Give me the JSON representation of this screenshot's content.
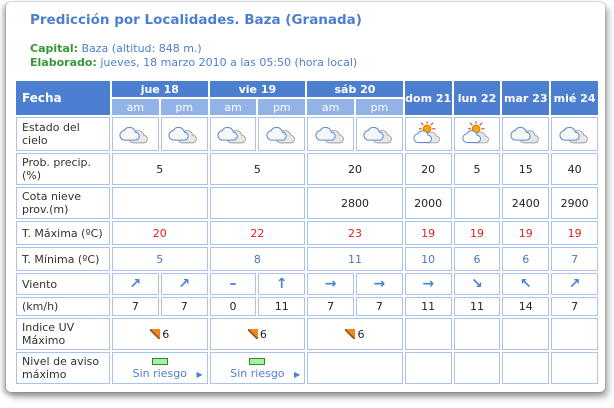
{
  "header": {
    "title": "Predicción por Localidades. Baza (Granada)",
    "capital": {
      "label": "Capital:",
      "value": "Baza (altitud: 848 m.)"
    },
    "elaborado": {
      "label": "Elaborado:",
      "value": "jueves, 18 marzo 2010 a las 05:50 (hora local)"
    }
  },
  "colors": {
    "accent_blue": "#4c7fd0",
    "light_blue": "#92b2e8",
    "cell_border": "#a9c3e9",
    "temp_max_red": "#dd2222",
    "temp_min_blue": "#4879bb",
    "label_green": "#339933",
    "risk_green": "#a8f0a0"
  },
  "table": {
    "fecha": "Fecha",
    "day_groups": [
      "jue 18",
      "vie 19",
      "sáb 20"
    ],
    "subcols": [
      "am",
      "pm",
      "am",
      "pm",
      "am",
      "pm"
    ],
    "single_days": [
      "dom 21",
      "lun 22",
      "mar 23",
      "mié 24"
    ],
    "sky": {
      "label": "Estado del cielo",
      "icons": [
        "cloudy",
        "cloudy",
        "cloudy",
        "cloudy",
        "cloudy",
        "cloudy",
        "sun-clouds",
        "sun-clouds",
        "cloudy",
        "cloudy"
      ]
    },
    "precip": {
      "label": "Prob. precip.(%)",
      "values": [
        "5",
        "5",
        "20",
        "20",
        "5",
        "15",
        "40"
      ]
    },
    "snow": {
      "label": "Cota nieve prov.(m)",
      "values": [
        "",
        "",
        "2800",
        "2000",
        "",
        "2400",
        "2900"
      ]
    },
    "tmax": {
      "label": "T. Máxima (ºC)",
      "values": [
        "20",
        "22",
        "23",
        "19",
        "19",
        "19",
        "19"
      ]
    },
    "tmin": {
      "label": "T. Mínima (ºC)",
      "values": [
        "5",
        "8",
        "11",
        "10",
        "6",
        "6",
        "7"
      ]
    },
    "wind": {
      "label": "Viento",
      "arrows": [
        "↗",
        "↗",
        "–",
        "↑",
        "→",
        "→",
        "→",
        "↘",
        "↖",
        "↗"
      ]
    },
    "kmh": {
      "label": "(km/h)",
      "values": [
        "7",
        "7",
        "0",
        "11",
        "7",
        "7",
        "11",
        "11",
        "14",
        "7"
      ]
    },
    "uv": {
      "label": "Indice UV Máximo",
      "values": [
        "6",
        "6",
        "6",
        "",
        "",
        "",
        ""
      ]
    },
    "risk": {
      "label": "Nivel de aviso máximo",
      "values": [
        "Sin riesgo",
        "Sin riesgo",
        "",
        "",
        "",
        "",
        ""
      ]
    }
  }
}
